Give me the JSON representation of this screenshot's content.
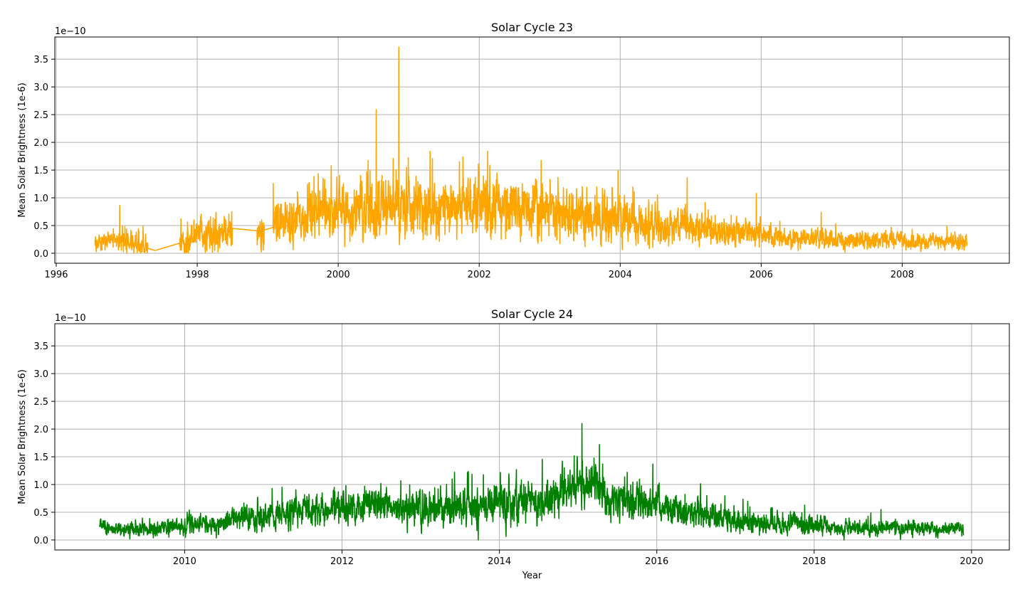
{
  "chart_data": [
    {
      "type": "line",
      "title": "Solar Cycle 23",
      "xlabel": "",
      "ylabel": "Mean Solar Brightness (1e-6)",
      "offset_label": "1e−10",
      "xlim": [
        1995.98,
        2009.52
      ],
      "ylim": [
        -0.18,
        3.9
      ],
      "xticks": [
        1996,
        1998,
        2000,
        2002,
        2004,
        2006,
        2008
      ],
      "xtick_labels": [
        "1996",
        "1998",
        "2000",
        "2002",
        "2004",
        "2006",
        "2008"
      ],
      "yticks": [
        0.0,
        0.5,
        1.0,
        1.5,
        2.0,
        2.5,
        3.0,
        3.5
      ],
      "ytick_labels": [
        "0.0",
        "0.5",
        "1.0",
        "1.5",
        "2.0",
        "2.5",
        "3.0",
        "3.5"
      ],
      "grid": true,
      "color": "#ffa500",
      "x_range": [
        1996.55,
        2008.92
      ],
      "profile": [
        [
          1996.55,
          0.15
        ],
        [
          1996.9,
          0.25
        ],
        [
          1997.05,
          0.18
        ],
        [
          1997.4,
          0.05
        ],
        [
          1997.8,
          0.2
        ],
        [
          1998.0,
          0.38
        ],
        [
          1998.2,
          0.3
        ],
        [
          1998.48,
          0.45
        ],
        [
          1998.9,
          0.4
        ],
        [
          1999.3,
          0.55
        ],
        [
          1999.7,
          0.7
        ],
        [
          2000.0,
          0.8
        ],
        [
          2000.5,
          0.8
        ],
        [
          2000.85,
          0.9
        ],
        [
          2001.3,
          0.75
        ],
        [
          2001.8,
          0.85
        ],
        [
          2002.3,
          0.88
        ],
        [
          2002.8,
          0.8
        ],
        [
          2003.3,
          0.7
        ],
        [
          2003.8,
          0.62
        ],
        [
          2004.3,
          0.5
        ],
        [
          2004.8,
          0.45
        ],
        [
          2005.2,
          0.45
        ],
        [
          2005.5,
          0.38
        ],
        [
          2006.0,
          0.35
        ],
        [
          2006.2,
          0.27
        ],
        [
          2007.0,
          0.25
        ],
        [
          2008.0,
          0.22
        ],
        [
          2008.92,
          0.2
        ]
      ],
      "volatility": [
        [
          1996.55,
          0.06
        ],
        [
          1997.1,
          0.08
        ],
        [
          1999.0,
          0.15
        ],
        [
          2000.0,
          0.22
        ],
        [
          2002.0,
          0.22
        ],
        [
          2003.8,
          0.18
        ],
        [
          2005.0,
          0.12
        ],
        [
          2006.2,
          0.08
        ],
        [
          2008.92,
          0.06
        ]
      ],
      "smooth_segments": [
        [
          1997.3,
          1997.75
        ],
        [
          1998.5,
          1998.85
        ],
        [
          1998.95,
          1999.08
        ]
      ],
      "spikes": [
        [
          1996.9,
          0.86
        ],
        [
          2000.54,
          2.59
        ],
        [
          2000.86,
          3.72
        ],
        [
          2000.78,
          1.71
        ],
        [
          1999.9,
          1.58
        ],
        [
          2001.72,
          1.65
        ],
        [
          2002.12,
          1.84
        ],
        [
          2002.88,
          1.67
        ],
        [
          2003.97,
          1.49
        ],
        [
          2004.95,
          1.36
        ],
        [
          2005.93,
          1.08
        ],
        [
          2006.85,
          0.74
        ],
        [
          1999.08,
          1.26
        ],
        [
          2000.45,
          1.5
        ],
        [
          2002.25,
          1.45
        ]
      ],
      "dips": [
        [
          1997.0,
          0.0
        ],
        [
          1997.1,
          0.0
        ],
        [
          1997.2,
          0.0
        ],
        [
          2003.5,
          0.12
        ]
      ],
      "seed": 23
    },
    {
      "type": "line",
      "title": "Solar Cycle 24",
      "xlabel": "Year",
      "ylabel": "Mean Solar Brightness (1e-6)",
      "offset_label": "1e−10",
      "xlim": [
        2008.35,
        2020.48
      ],
      "ylim": [
        -0.18,
        3.9
      ],
      "xticks": [
        2010,
        2012,
        2014,
        2016,
        2018,
        2020
      ],
      "xtick_labels": [
        "2010",
        "2012",
        "2014",
        "2016",
        "2018",
        "2020"
      ],
      "yticks": [
        0.0,
        0.5,
        1.0,
        1.5,
        2.0,
        2.5,
        3.0,
        3.5
      ],
      "ytick_labels": [
        "0.0",
        "0.5",
        "1.0",
        "1.5",
        "2.0",
        "2.5",
        "3.0",
        "3.5"
      ],
      "grid": true,
      "color": "#008000",
      "x_range": [
        2008.92,
        2019.9
      ],
      "profile": [
        [
          2008.92,
          0.24
        ],
        [
          2009.5,
          0.18
        ],
        [
          2010.0,
          0.25
        ],
        [
          2010.5,
          0.33
        ],
        [
          2011.0,
          0.42
        ],
        [
          2011.5,
          0.5
        ],
        [
          2012.0,
          0.57
        ],
        [
          2012.5,
          0.62
        ],
        [
          2013.0,
          0.6
        ],
        [
          2013.5,
          0.58
        ],
        [
          2014.0,
          0.62
        ],
        [
          2014.5,
          0.68
        ],
        [
          2014.9,
          0.95
        ],
        [
          2015.1,
          1.05
        ],
        [
          2015.3,
          0.8
        ],
        [
          2015.7,
          0.7
        ],
        [
          2016.0,
          0.62
        ],
        [
          2016.4,
          0.5
        ],
        [
          2016.8,
          0.42
        ],
        [
          2017.2,
          0.33
        ],
        [
          2017.6,
          0.27
        ],
        [
          2018.0,
          0.27
        ],
        [
          2018.5,
          0.22
        ],
        [
          2019.0,
          0.22
        ],
        [
          2019.9,
          0.2
        ]
      ],
      "volatility": [
        [
          2008.92,
          0.05
        ],
        [
          2010.0,
          0.07
        ],
        [
          2011.5,
          0.11
        ],
        [
          2013.0,
          0.13
        ],
        [
          2014.9,
          0.18
        ],
        [
          2016.0,
          0.13
        ],
        [
          2017.0,
          0.1
        ],
        [
          2018.0,
          0.07
        ],
        [
          2019.9,
          0.05
        ]
      ],
      "smooth_segments": [],
      "spikes": [
        [
          2015.05,
          2.1
        ],
        [
          2015.27,
          1.72
        ],
        [
          2014.95,
          1.52
        ],
        [
          2015.95,
          1.37
        ],
        [
          2013.4,
          1.1
        ],
        [
          2014.6,
          1.0
        ],
        [
          2011.9,
          0.95
        ],
        [
          2012.05,
          0.98
        ],
        [
          2017.88,
          0.63
        ],
        [
          2018.85,
          0.55
        ]
      ],
      "dips": [
        [
          2013.73,
          0.0
        ],
        [
          2018.38,
          0.0
        ],
        [
          2009.8,
          0.05
        ]
      ],
      "seed": 24
    }
  ]
}
